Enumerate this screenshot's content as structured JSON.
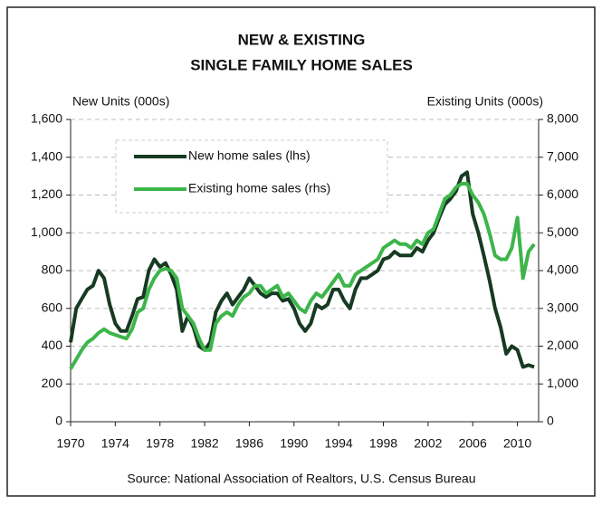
{
  "chart_data": {
    "type": "line",
    "title": [
      "NEW & EXISTING",
      "SINGLE FAMILY HOME SALES"
    ],
    "y_label": "New Units (000s)",
    "y2_label": "Existing Units (000s)",
    "source": "Source: National Association of Realtors, U.S. Census Bureau",
    "x": [
      1970,
      1970.5,
      1971,
      1971.5,
      1972,
      1972.5,
      1973,
      1973.5,
      1974,
      1974.5,
      1975,
      1975.5,
      1976,
      1976.5,
      1977,
      1977.5,
      1978,
      1978.5,
      1979,
      1979.5,
      1980,
      1980.5,
      1981,
      1981.5,
      1982,
      1982.5,
      1983,
      1983.5,
      1984,
      1984.5,
      1985,
      1985.5,
      1986,
      1986.5,
      1987,
      1987.5,
      1988,
      1988.5,
      1989,
      1989.5,
      1990,
      1990.5,
      1991,
      1991.5,
      1992,
      1992.5,
      1993,
      1993.5,
      1994,
      1994.5,
      1995,
      1995.5,
      1996,
      1996.5,
      1997,
      1997.5,
      1998,
      1998.5,
      1999,
      1999.5,
      2000,
      2000.5,
      2001,
      2001.5,
      2002,
      2002.5,
      2003,
      2003.5,
      2004,
      2004.5,
      2005,
      2005.5,
      2006,
      2006.5,
      2007,
      2007.5,
      2008,
      2008.5,
      2009,
      2009.5,
      2010,
      2010.5,
      2011,
      2011.5
    ],
    "series": [
      {
        "name": "New home sales (lhs)",
        "color": "#173a22",
        "axis": "y",
        "values": [
          420,
          600,
          650,
          700,
          720,
          800,
          760,
          620,
          520,
          480,
          480,
          560,
          650,
          660,
          800,
          860,
          820,
          840,
          780,
          700,
          480,
          560,
          500,
          400,
          380,
          420,
          580,
          640,
          680,
          620,
          660,
          700,
          760,
          720,
          680,
          660,
          680,
          680,
          640,
          650,
          600,
          520,
          480,
          520,
          620,
          600,
          620,
          700,
          700,
          640,
          600,
          700,
          760,
          760,
          780,
          800,
          860,
          870,
          900,
          880,
          880,
          880,
          920,
          900,
          960,
          1000,
          1080,
          1150,
          1180,
          1220,
          1300,
          1320,
          1100,
          1000,
          880,
          750,
          600,
          500,
          360,
          400,
          380,
          290,
          300,
          290
        ]
      },
      {
        "name": "Existing home sales (rhs)",
        "color": "#3db54a",
        "axis": "y2",
        "values": [
          1400,
          1650,
          1900,
          2100,
          2200,
          2350,
          2450,
          2350,
          2300,
          2250,
          2200,
          2450,
          2900,
          3000,
          3500,
          3800,
          4000,
          4050,
          4000,
          3800,
          3000,
          2800,
          2600,
          2200,
          1900,
          1900,
          2600,
          2800,
          2900,
          2800,
          3100,
          3300,
          3400,
          3600,
          3600,
          3400,
          3500,
          3600,
          3300,
          3400,
          3200,
          3000,
          2900,
          3200,
          3400,
          3300,
          3500,
          3700,
          3900,
          3600,
          3600,
          3900,
          4000,
          4100,
          4200,
          4300,
          4600,
          4700,
          4800,
          4700,
          4700,
          4600,
          4800,
          4700,
          5000,
          5100,
          5500,
          5900,
          6000,
          6200,
          6300,
          6300,
          6000,
          5800,
          5500,
          5000,
          4400,
          4300,
          4300,
          4600,
          5400,
          3800,
          4500,
          4700
        ]
      }
    ],
    "xlim": [
      1970,
      2011.9
    ],
    "xticks": [
      1970,
      1974,
      1978,
      1982,
      1986,
      1990,
      1994,
      1998,
      2002,
      2006,
      2010
    ],
    "ylim": [
      0,
      1600
    ],
    "yticks": [
      0,
      200,
      400,
      600,
      800,
      {
        "value": 1000,
        "label": "1,000"
      },
      {
        "value": 1200,
        "label": "1,200"
      },
      {
        "value": 1400,
        "label": "1,400"
      },
      {
        "value": 1600,
        "label": "1,600"
      }
    ],
    "y2lim": [
      0,
      8000
    ],
    "y2ticks": [
      0,
      {
        "value": 1000,
        "label": "1,000"
      },
      {
        "value": 2000,
        "label": "2,000"
      },
      {
        "value": 3000,
        "label": "3,000"
      },
      {
        "value": 4000,
        "label": "4,000"
      },
      {
        "value": 5000,
        "label": "5,000"
      },
      {
        "value": 6000,
        "label": "6,000"
      },
      {
        "value": 7000,
        "label": "7,000"
      },
      {
        "value": 8000,
        "label": "8,000"
      }
    ],
    "grid": true,
    "legend": "upper left"
  }
}
